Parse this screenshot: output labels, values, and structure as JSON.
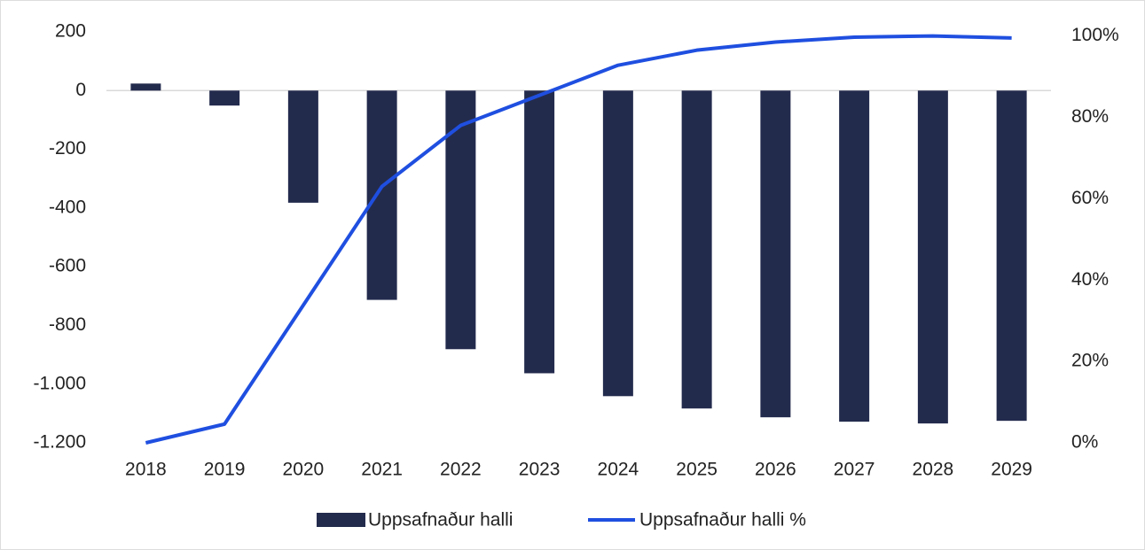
{
  "chart_data": {
    "type": "bar",
    "categories": [
      "2018",
      "2019",
      "2020",
      "2021",
      "2022",
      "2023",
      "2024",
      "2025",
      "2026",
      "2027",
      "2028",
      "2029"
    ],
    "series": [
      {
        "name": "Uppsafnaður halli",
        "type": "bar",
        "color": "#232b4d",
        "values": [
          24,
          -51,
          -382,
          -713,
          -881,
          -963,
          -1041,
          -1083,
          -1113,
          -1128,
          -1134,
          -1125
        ]
      },
      {
        "name": "Uppsafnaður halli %",
        "type": "line",
        "axis": "y2",
        "color": "#1f4fe0",
        "values": [
          0,
          4.6,
          33.8,
          63,
          78,
          85.4,
          92.8,
          96.5,
          98.5,
          99.7,
          100,
          99.5
        ]
      }
    ],
    "ylim": [
      -1200,
      200
    ],
    "yticks": [
      200,
      0,
      -200,
      -400,
      -600,
      -800,
      {
        "value": -1000,
        "label": "-1.000"
      },
      {
        "value": -1200,
        "label": "-1.200"
      }
    ],
    "y2lim": [
      0,
      101
    ],
    "y2ticks": [
      {
        "value": 0,
        "label": "0%"
      },
      {
        "value": 20,
        "label": "20%"
      },
      {
        "value": 40,
        "label": "40%"
      },
      {
        "value": 60,
        "label": "60%"
      },
      {
        "value": 80,
        "label": "80%"
      },
      {
        "value": 100,
        "label": "100%"
      }
    ],
    "legend": "bottom"
  }
}
